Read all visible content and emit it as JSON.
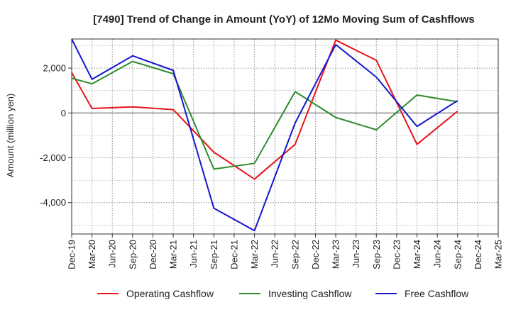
{
  "chart_data": {
    "type": "line",
    "title": "[7490]  Trend of Change in Amount (YoY) of 12Mo Moving Sum of Cashflows",
    "ylabel": "Amount (million yen)",
    "xlabel": "",
    "ylim": [
      -5400,
      3300
    ],
    "yticks": [
      -4000,
      -2000,
      0,
      2000
    ],
    "ytick_labels": [
      "-4,000",
      "-2,000",
      "0",
      "2,000"
    ],
    "categories": [
      "Dec-19",
      "Mar-20",
      "Jun-20",
      "Sep-20",
      "Dec-20",
      "Mar-21",
      "Jun-21",
      "Sep-21",
      "Dec-21",
      "Mar-22",
      "Jun-22",
      "Sep-22",
      "Dec-22",
      "Mar-23",
      "Jun-23",
      "Sep-23",
      "Dec-23",
      "Mar-24",
      "Jun-24",
      "Sep-24",
      "Dec-24",
      "Mar-25"
    ],
    "grid": true,
    "legend_position": "bottom",
    "series": [
      {
        "name": "Operating Cashflow",
        "color": "#e8141a",
        "points": [
          [
            0,
            1800
          ],
          [
            1,
            200
          ],
          [
            3,
            270
          ],
          [
            5,
            150
          ],
          [
            7,
            -1750
          ],
          [
            9,
            -2950
          ],
          [
            11,
            -1400
          ],
          [
            13,
            3250
          ],
          [
            15,
            2350
          ],
          [
            17,
            -1400
          ],
          [
            19,
            80
          ]
        ]
      },
      {
        "name": "Investing Cashflow",
        "color": "#2e8b2e",
        "points": [
          [
            0,
            1550
          ],
          [
            1,
            1300
          ],
          [
            3,
            2300
          ],
          [
            5,
            1750
          ],
          [
            7,
            -2500
          ],
          [
            9,
            -2250
          ],
          [
            11,
            950
          ],
          [
            13,
            -200
          ],
          [
            15,
            -750
          ],
          [
            17,
            800
          ],
          [
            19,
            500
          ]
        ]
      },
      {
        "name": "Free Cashflow",
        "color": "#1515d0",
        "points": [
          [
            0,
            3300
          ],
          [
            1,
            1500
          ],
          [
            3,
            2550
          ],
          [
            5,
            1900
          ],
          [
            7,
            -4250
          ],
          [
            9,
            -5250
          ],
          [
            11,
            -450
          ],
          [
            13,
            3050
          ],
          [
            15,
            1600
          ],
          [
            17,
            -600
          ],
          [
            19,
            550
          ]
        ]
      }
    ]
  }
}
